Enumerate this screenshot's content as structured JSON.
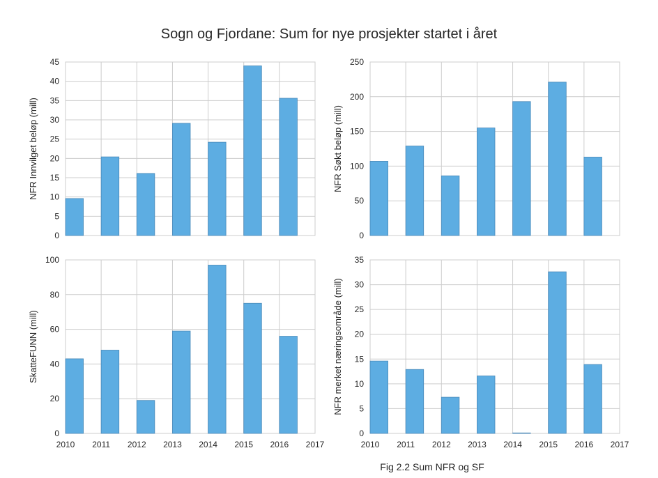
{
  "figure": {
    "title": "Sogn og Fjordane: Sum for nye prosjekter startet i året",
    "caption": "Fig 2.2 Sum NFR og SF",
    "bar_color": "#5dade2",
    "bar_edge_color": "#4a89b8"
  },
  "chart_data": [
    {
      "type": "bar",
      "title": "",
      "xlabel": "",
      "ylabel": "NFR Innvilget beløp (mill)",
      "x": [
        2010,
        2011,
        2012,
        2013,
        2014,
        2015,
        2016
      ],
      "values": [
        9.6,
        20.4,
        16.1,
        29.1,
        24.2,
        44.0,
        35.6
      ],
      "xlim": [
        2010,
        2017
      ],
      "ylim": [
        0,
        45
      ],
      "yticks": [
        0,
        5,
        10,
        15,
        20,
        25,
        30,
        35,
        40,
        45
      ],
      "xticks": [],
      "grid": true
    },
    {
      "type": "bar",
      "title": "",
      "xlabel": "",
      "ylabel": "NFR Søkt beløp (mill)",
      "x": [
        2010,
        2011,
        2012,
        2013,
        2014,
        2015,
        2016
      ],
      "values": [
        107,
        129,
        86,
        155,
        193,
        221,
        113
      ],
      "xlim": [
        2010,
        2017
      ],
      "ylim": [
        0,
        250
      ],
      "yticks": [
        0,
        50,
        100,
        150,
        200,
        250
      ],
      "xticks": [],
      "grid": true
    },
    {
      "type": "bar",
      "title": "",
      "xlabel": "",
      "ylabel": "SkatteFUNN (mill)",
      "x": [
        2010,
        2011,
        2012,
        2013,
        2014,
        2015,
        2016
      ],
      "values": [
        43,
        48,
        19,
        59,
        97,
        75,
        56
      ],
      "xlim": [
        2010,
        2017
      ],
      "ylim": [
        0,
        100
      ],
      "yticks": [
        0,
        20,
        40,
        60,
        80,
        100
      ],
      "xticks": [
        "2010",
        "2011",
        "2012",
        "2013",
        "2014",
        "2015",
        "2016",
        "2017"
      ],
      "grid": true
    },
    {
      "type": "bar",
      "title": "",
      "xlabel": "",
      "ylabel": "NFR merket næringsområde (mill)",
      "x": [
        2010,
        2011,
        2012,
        2013,
        2014,
        2015,
        2016
      ],
      "values": [
        14.6,
        12.9,
        7.3,
        11.6,
        0.1,
        32.6,
        13.9
      ],
      "xlim": [
        2010,
        2017
      ],
      "ylim": [
        0,
        35
      ],
      "yticks": [
        0,
        5,
        10,
        15,
        20,
        25,
        30,
        35
      ],
      "xticks": [
        "2010",
        "2011",
        "2012",
        "2013",
        "2014",
        "2015",
        "2016",
        "2017"
      ],
      "grid": true
    }
  ]
}
